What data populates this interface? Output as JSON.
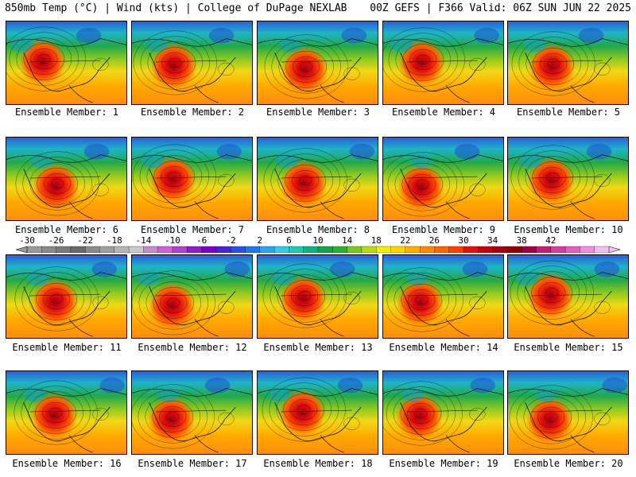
{
  "header": {
    "left_title": "850mb Temp (°C) | Wind (kts) | College of DuPage NEXLAB",
    "right_title": "00Z GEFS | F366 Valid: 06Z SUN JUN 22 2025"
  },
  "colorbar": {
    "ticks": [
      "-30",
      "-26",
      "-22",
      "-18",
      "-14",
      "-10",
      "-6",
      "-2",
      "2",
      "6",
      "10",
      "14",
      "18",
      "22",
      "26",
      "30",
      "34",
      "38",
      "42"
    ],
    "colors": [
      "#9a9a9a",
      "#8a8a8a",
      "#7a7a7a",
      "#6a6a6a",
      "#8a8a8a",
      "#9f9f9f",
      "#b5b5b5",
      "#c9c9c9",
      "#c08ccc",
      "#d060d8",
      "#b040d0",
      "#8a20c8",
      "#7a00c0",
      "#4a24d0",
      "#2a50e0",
      "#1f78e8",
      "#2da5ea",
      "#38c8e8",
      "#1fc8b0",
      "#12b080",
      "#16a050",
      "#2cb030",
      "#78c820",
      "#bcd818",
      "#f0ee10",
      "#ffd400",
      "#ffae00",
      "#ff8a00",
      "#ff6400",
      "#f84000",
      "#e01010",
      "#c00010",
      "#a00010",
      "#8c0008",
      "#a00040",
      "#c02070",
      "#d040a0",
      "#e060c0",
      "#f090dc",
      "#f0c0ec"
    ]
  },
  "members": [
    {
      "label": "Ensemble Member: 1"
    },
    {
      "label": "Ensemble Member: 2"
    },
    {
      "label": "Ensemble Member: 3"
    },
    {
      "label": "Ensemble Member: 4"
    },
    {
      "label": "Ensemble Member: 5"
    },
    {
      "label": "Ensemble Member: 6"
    },
    {
      "label": "Ensemble Member: 7"
    },
    {
      "label": "Ensemble Member: 8"
    },
    {
      "label": "Ensemble Member: 9"
    },
    {
      "label": "Ensemble Member: 10"
    },
    {
      "label": "Ensemble Member: 11"
    },
    {
      "label": "Ensemble Member: 12"
    },
    {
      "label": "Ensemble Member: 13"
    },
    {
      "label": "Ensemble Member: 14"
    },
    {
      "label": "Ensemble Member: 15"
    },
    {
      "label": "Ensemble Member: 16"
    },
    {
      "label": "Ensemble Member: 17"
    },
    {
      "label": "Ensemble Member: 18"
    },
    {
      "label": "Ensemble Member: 19"
    },
    {
      "label": "Ensemble Member: 20"
    }
  ]
}
